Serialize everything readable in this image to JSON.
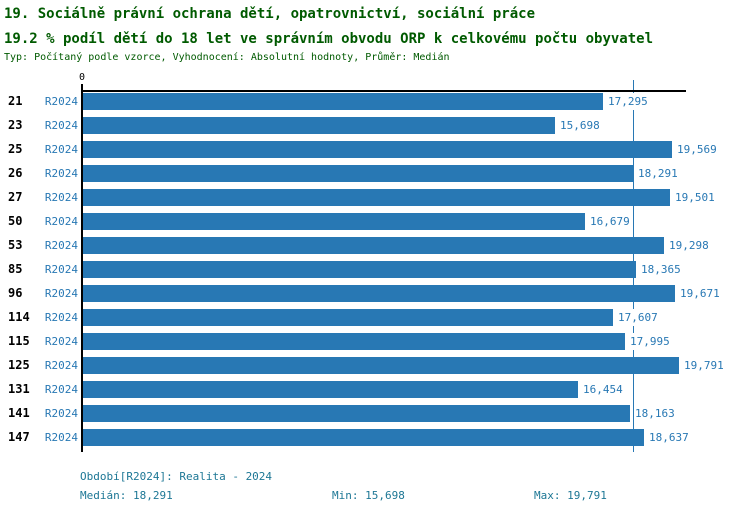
{
  "header": {
    "title": "19. Sociálně právní ochrana dětí, opatrovnictví, sociální práce",
    "subtitle": "19.2 % podíl dětí do 18 let ve správním obvodu ORP k celkovému počtu obyvatel",
    "meta": "Typ: Počítaný podle vzorce, Vyhodnocení: Absolutní hodnoty, Průměr: Medián"
  },
  "chart_data": {
    "type": "bar",
    "orientation": "horizontal",
    "title": "",
    "categories": [
      "21",
      "23",
      "25",
      "26",
      "27",
      "50",
      "53",
      "85",
      "96",
      "114",
      "115",
      "125",
      "131",
      "141",
      "147"
    ],
    "series": [
      {
        "name": "R2024",
        "values": [
          17295,
          15698,
          19569,
          18291,
          19501,
          16679,
          19298,
          18365,
          19671,
          17607,
          17995,
          19791,
          16454,
          18163,
          18637
        ]
      }
    ],
    "value_labels": [
      "17,295",
      "15,698",
      "19,569",
      "18,291",
      "19,501",
      "16,679",
      "19,298",
      "18,365",
      "19,671",
      "17,607",
      "17,995",
      "19,791",
      "16,454",
      "18,163",
      "18,637"
    ],
    "xlim": [
      0,
      20000
    ],
    "x_ticks": [
      {
        "value": 0,
        "label": "0"
      }
    ],
    "median_value": 18291,
    "grid": false,
    "legend_position": "none",
    "bar_color": "#2878b4",
    "value_label_color": "#2878b4",
    "series_label_color": "#2878b4",
    "median_line_color": "#2878b4",
    "axis_color": "#000000"
  },
  "footer": {
    "period": "Období[R2024]: Realita - 2024",
    "median": "Medián: 18,291",
    "min": "Min: 15,698",
    "max": "Max: 19,791"
  },
  "colors": {
    "title_green": "#005a00",
    "bar_blue": "#2878b4",
    "footer_blue": "#1d7795",
    "axis_black": "#000000",
    "background": "#ffffff"
  }
}
